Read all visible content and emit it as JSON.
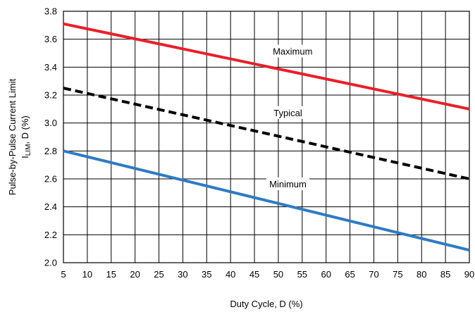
{
  "chart_data": {
    "type": "line",
    "xlabel": "Duty Cycle, D (%)",
    "ylabel_line1": "Pulse-by-Pulse Current Limit",
    "ylabel_main": "I",
    "ylabel_sub": "LIM",
    "ylabel_rest": ", D (%)",
    "xlim": [
      5,
      90
    ],
    "ylim": [
      2.0,
      3.8
    ],
    "x_ticks": [
      5,
      10,
      15,
      20,
      25,
      30,
      35,
      40,
      45,
      50,
      55,
      60,
      65,
      70,
      75,
      80,
      85,
      90
    ],
    "y_ticks": [
      "2.0",
      "2.2",
      "2.4",
      "2.6",
      "2.8",
      "3.0",
      "3.2",
      "3.4",
      "3.6",
      "3.8"
    ],
    "grid": true,
    "series": [
      {
        "name": "Maximum",
        "color": "#e8202a",
        "dash": "solid",
        "x": [
          5,
          90
        ],
        "y": [
          3.71,
          3.1
        ]
      },
      {
        "name": "Typical",
        "color": "#000000",
        "dash": "dashed",
        "x": [
          5,
          90
        ],
        "y": [
          3.25,
          2.6
        ]
      },
      {
        "name": "Minimum",
        "color": "#2e7bc4",
        "dash": "solid",
        "x": [
          5,
          90
        ],
        "y": [
          2.8,
          2.09
        ]
      }
    ],
    "annotations": [
      {
        "text": "Maximum",
        "x": 53,
        "y": 3.51
      },
      {
        "text": "Typical",
        "x": 52,
        "y": 3.07
      },
      {
        "text": "Minimum",
        "x": 52,
        "y": 2.56
      }
    ]
  }
}
